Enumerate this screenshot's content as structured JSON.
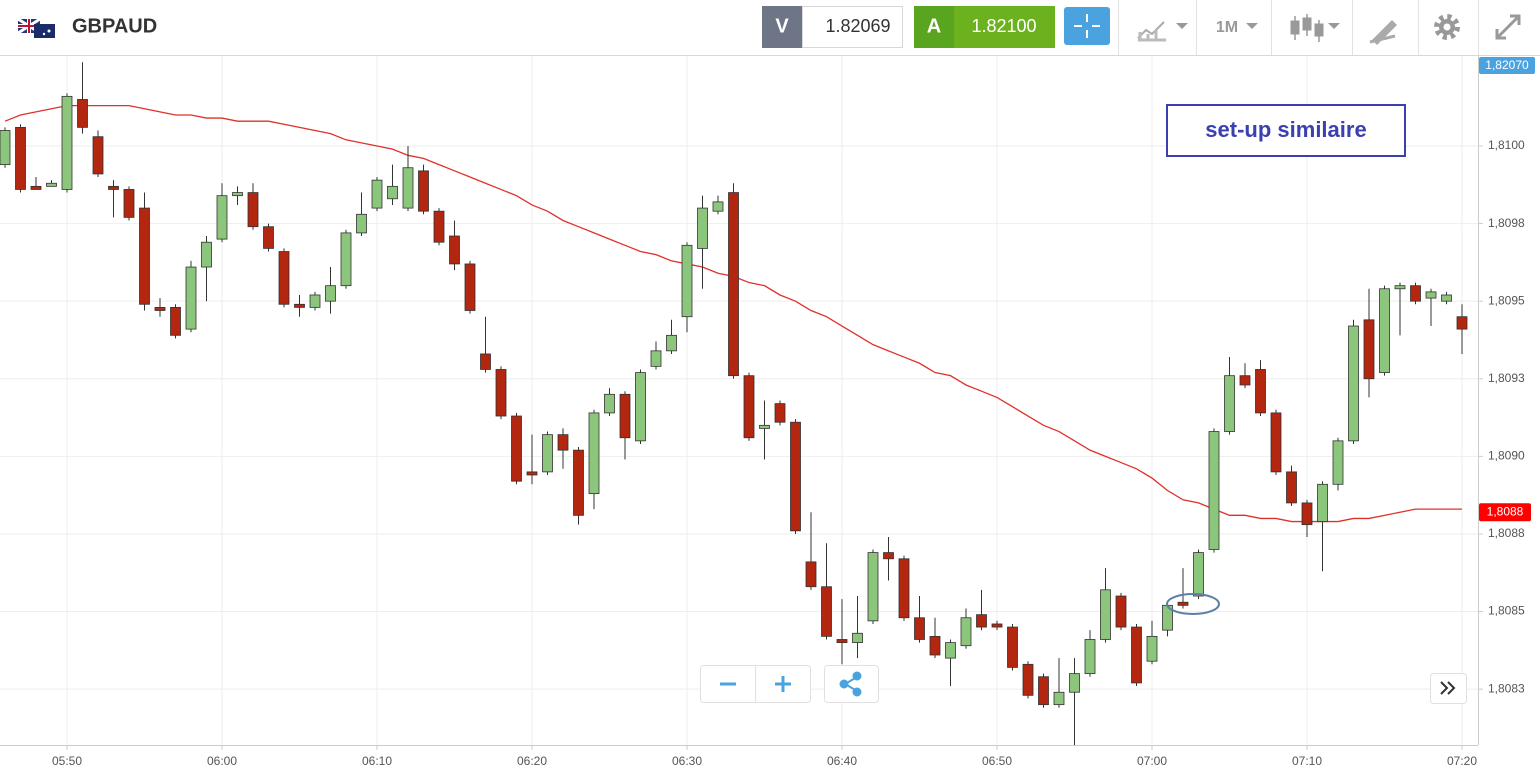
{
  "header": {
    "symbol": "GBPAUD",
    "sell_label": "V",
    "sell_price": "1.82069",
    "buy_label": "A",
    "buy_price": "1.82100",
    "timeframe": "1M"
  },
  "chart_data": {
    "type": "candlestick",
    "annotation": "set-up similaire",
    "top_marker_label": "1,82070",
    "current_price": {
      "value": 1.80882,
      "label": "1,8088",
      "color": "#ff0000"
    },
    "up_color": "#8cc57c",
    "down_color": "#b3260f",
    "grid": true,
    "categories": [
      null,
      null,
      null,
      null,
      "05:50",
      null,
      null,
      null,
      null,
      null,
      null,
      null,
      null,
      null,
      "06:00",
      null,
      null,
      null,
      null,
      null,
      null,
      null,
      null,
      null,
      "06:10",
      null,
      null,
      null,
      null,
      null,
      null,
      null,
      null,
      null,
      "06:20",
      null,
      null,
      null,
      null,
      null,
      null,
      null,
      null,
      null,
      "06:30",
      null,
      null,
      null,
      null,
      null,
      null,
      null,
      null,
      null,
      "06:40",
      null,
      null,
      null,
      null,
      null,
      null,
      null,
      null,
      null,
      "06:50",
      null,
      null,
      null,
      null,
      null,
      null,
      null,
      null,
      null,
      "07:00",
      null,
      null,
      null,
      null,
      null,
      null,
      null,
      null,
      null,
      "07:10",
      null,
      null,
      null,
      null,
      null,
      null,
      null,
      null,
      null,
      "07:20"
    ],
    "open": [
      1.80994,
      1.81006,
      1.80987,
      1.80987,
      1.80986,
      1.81015,
      1.81003,
      1.80987,
      1.80986,
      1.8098,
      1.80948,
      1.80948,
      1.80941,
      1.80961,
      1.8097,
      1.80984,
      1.80985,
      1.80974,
      1.80966,
      1.80949,
      1.80948,
      1.8095,
      1.80955,
      1.80972,
      1.8098,
      1.80983,
      1.8098,
      1.80992,
      1.80979,
      1.80971,
      1.80962,
      1.80933,
      1.80928,
      1.80913,
      1.80895,
      1.80895,
      1.80907,
      1.80902,
      1.80888,
      1.80914,
      1.8092,
      1.80905,
      1.80929,
      1.80934,
      1.80945,
      1.80967,
      1.80979,
      1.80985,
      1.80926,
      1.80909,
      1.80917,
      1.80911,
      1.80866,
      1.80858,
      1.80841,
      1.8084,
      1.80847,
      1.80869,
      1.80867,
      1.80848,
      1.80842,
      1.80835,
      1.80839,
      1.80849,
      1.80846,
      1.80845,
      1.80833,
      1.80829,
      1.8082,
      1.80824,
      1.8083,
      1.80841,
      1.80855,
      1.80845,
      1.80834,
      1.80844,
      1.80853,
      1.80855,
      1.8087,
      1.80908,
      1.80926,
      1.80928,
      1.80914,
      1.80895,
      1.80885,
      1.80879,
      1.80891,
      1.80905,
      1.80944,
      1.80927,
      1.80954,
      1.80955,
      1.80951,
      1.8095,
      1.80945
    ],
    "high": [
      1.81006,
      1.81007,
      1.8099,
      1.80989,
      1.81017,
      1.81027,
      1.81005,
      1.80989,
      1.80987,
      1.80985,
      1.80951,
      1.80949,
      1.80963,
      1.80971,
      1.80988,
      1.80987,
      1.80988,
      1.80975,
      1.80967,
      1.80952,
      1.80953,
      1.80961,
      1.80973,
      1.80985,
      1.8099,
      1.80994,
      1.81,
      1.80994,
      1.8098,
      1.80976,
      1.80963,
      1.80945,
      1.80929,
      1.80914,
      1.80907,
      1.80908,
      1.80909,
      1.80903,
      1.80915,
      1.80922,
      1.80921,
      1.80928,
      1.80937,
      1.80944,
      1.80969,
      1.80984,
      1.80984,
      1.80988,
      1.80927,
      1.80918,
      1.80918,
      1.80912,
      1.80882,
      1.80872,
      1.80854,
      1.80855,
      1.8087,
      1.80874,
      1.80868,
      1.80855,
      1.80848,
      1.80841,
      1.80851,
      1.80857,
      1.80847,
      1.80846,
      1.80834,
      1.8083,
      1.80835,
      1.80835,
      1.80844,
      1.80864,
      1.80856,
      1.80846,
      1.80847,
      1.80853,
      1.80864,
      1.8087,
      1.80909,
      1.80932,
      1.8093,
      1.80931,
      1.80915,
      1.80897,
      1.80886,
      1.80892,
      1.80906,
      1.80944,
      1.80954,
      1.80955,
      1.80956,
      1.80956,
      1.80954,
      1.80953,
      1.80949
    ],
    "low": [
      1.80993,
      1.80985,
      1.80986,
      1.80987,
      1.80985,
      1.81004,
      1.8099,
      1.80977,
      1.80976,
      1.80947,
      1.80945,
      1.80938,
      1.8094,
      1.8095,
      1.80969,
      1.80981,
      1.80973,
      1.80966,
      1.80948,
      1.80945,
      1.80947,
      1.80946,
      1.80954,
      1.80971,
      1.80979,
      1.80981,
      1.80979,
      1.80978,
      1.80968,
      1.8096,
      1.80946,
      1.80927,
      1.80912,
      1.80891,
      1.80891,
      1.80894,
      1.80896,
      1.80878,
      1.80883,
      1.80913,
      1.80899,
      1.80904,
      1.80928,
      1.80933,
      1.8094,
      1.80954,
      1.80978,
      1.80925,
      1.80905,
      1.80899,
      1.8091,
      1.80875,
      1.80857,
      1.80841,
      1.80833,
      1.80835,
      1.80846,
      1.8086,
      1.80847,
      1.8084,
      1.80835,
      1.80826,
      1.80838,
      1.80844,
      1.80844,
      1.80831,
      1.80822,
      1.80819,
      1.80819,
      1.80807,
      1.80829,
      1.8084,
      1.80844,
      1.80826,
      1.80833,
      1.80842,
      1.80851,
      1.80854,
      1.80869,
      1.80907,
      1.80922,
      1.80913,
      1.80894,
      1.80884,
      1.80874,
      1.80863,
      1.80889,
      1.80904,
      1.80919,
      1.80926,
      1.80939,
      1.80949,
      1.80942,
      1.80949,
      1.80933
    ],
    "close": [
      1.81005,
      1.80986,
      1.80986,
      1.80988,
      1.81016,
      1.81006,
      1.80991,
      1.80986,
      1.80977,
      1.80949,
      1.80947,
      1.80939,
      1.80961,
      1.80969,
      1.80984,
      1.80985,
      1.80974,
      1.80967,
      1.80949,
      1.80948,
      1.80952,
      1.80955,
      1.80972,
      1.80978,
      1.80989,
      1.80987,
      1.80993,
      1.80979,
      1.80969,
      1.80962,
      1.80947,
      1.80928,
      1.80913,
      1.80892,
      1.80894,
      1.80907,
      1.80902,
      1.80881,
      1.80914,
      1.8092,
      1.80906,
      1.80927,
      1.80934,
      1.80939,
      1.80968,
      1.8098,
      1.80982,
      1.80926,
      1.80906,
      1.8091,
      1.80911,
      1.80876,
      1.80858,
      1.80842,
      1.8084,
      1.80843,
      1.80869,
      1.80867,
      1.80848,
      1.80841,
      1.80836,
      1.8084,
      1.80848,
      1.80845,
      1.80845,
      1.80832,
      1.80823,
      1.8082,
      1.80824,
      1.8083,
      1.80841,
      1.80857,
      1.80845,
      1.80827,
      1.80842,
      1.80852,
      1.80852,
      1.80869,
      1.80908,
      1.80926,
      1.80923,
      1.80914,
      1.80895,
      1.80885,
      1.80878,
      1.80891,
      1.80905,
      1.80942,
      1.80925,
      1.80954,
      1.80955,
      1.8095,
      1.80953,
      1.80952,
      1.80941
    ],
    "moving_average": {
      "color": "#e0302a",
      "values": [
        1.81008,
        1.8101,
        1.81011,
        1.81012,
        1.81013,
        1.81013,
        1.81013,
        1.81013,
        1.81013,
        1.81012,
        1.81011,
        1.8101,
        1.8101,
        1.81009,
        1.81009,
        1.81008,
        1.81008,
        1.81008,
        1.81007,
        1.81006,
        1.81005,
        1.81004,
        1.81002,
        1.81001,
        1.81,
        1.80999,
        1.80997,
        1.80996,
        1.80994,
        1.80992,
        1.8099,
        1.80988,
        1.80986,
        1.80984,
        1.80981,
        1.80979,
        1.80976,
        1.80974,
        1.80972,
        1.8097,
        1.80968,
        1.80966,
        1.80965,
        1.80963,
        1.80962,
        1.80961,
        1.80959,
        1.80958,
        1.80956,
        1.80955,
        1.80952,
        1.8095,
        1.80947,
        1.80945,
        1.80942,
        1.80939,
        1.80936,
        1.80934,
        1.80932,
        1.8093,
        1.80927,
        1.80926,
        1.80923,
        1.80921,
        1.80919,
        1.80916,
        1.80913,
        1.8091,
        1.80908,
        1.80905,
        1.80902,
        1.809,
        1.80898,
        1.80896,
        1.80893,
        1.80889,
        1.80886,
        1.80885,
        1.80883,
        1.80881,
        1.80881,
        1.8088,
        1.8088,
        1.80879,
        1.80879,
        1.80879,
        1.80879,
        1.8088,
        1.8088,
        1.80881,
        1.80882,
        1.80883,
        1.80883,
        1.80883,
        1.80883
      ]
    },
    "ylim": [
      1.80807,
      1.81029
    ],
    "yticks": [
      {
        "value": 1.81,
        "label": "1,8100"
      },
      {
        "value": 1.80975,
        "label": "1,8098"
      },
      {
        "value": 1.8095,
        "label": "1,8095"
      },
      {
        "value": 1.80925,
        "label": "1,8093"
      },
      {
        "value": 1.809,
        "label": "1,8090"
      },
      {
        "value": 1.80875,
        "label": "1,8088"
      },
      {
        "value": 1.8085,
        "label": "1,8085"
      },
      {
        "value": 1.80825,
        "label": "1,8083"
      }
    ]
  }
}
